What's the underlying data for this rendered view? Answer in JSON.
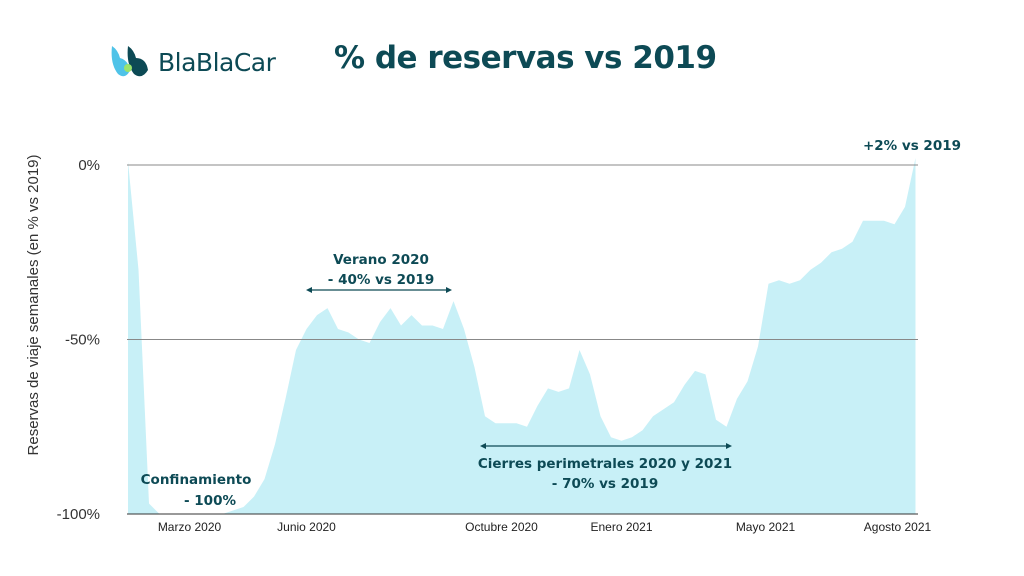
{
  "logo": {
    "text": "BlaBlaCar"
  },
  "chart_data": {
    "type": "area",
    "title": "% de reservas vs 2019",
    "ylabel": "Reservas de viaje semanales (en % vs 2019)",
    "xlabel": "",
    "ylim": [
      -100,
      0
    ],
    "yticks": [
      {
        "value": 0,
        "label": "0%"
      },
      {
        "value": -50,
        "label": "-50%"
      },
      {
        "value": -100,
        "label": "-100%"
      }
    ],
    "grid": "horizontal at 0% and -50%",
    "fill_color": "#c8f0f7",
    "text_color": "#0d4a55",
    "xticks": [
      {
        "date": "2020-04-12",
        "label": "Marzo 2020"
      },
      {
        "date": "2020-06-29",
        "label": "Junio 2020"
      },
      {
        "date": "2020-11-06",
        "label": "Octubre 2020"
      },
      {
        "date": "2021-01-25",
        "label": "Enero 2021"
      },
      {
        "date": "2021-05-01",
        "label": "Mayo 2021"
      },
      {
        "date": "2021-07-28",
        "label": "Agosto 2021"
      }
    ],
    "x": [
      "2020-03-02",
      "2020-03-09",
      "2020-03-16",
      "2020-03-23",
      "2020-03-30",
      "2020-04-06",
      "2020-04-13",
      "2020-04-20",
      "2020-04-27",
      "2020-05-04",
      "2020-05-11",
      "2020-05-18",
      "2020-05-25",
      "2020-06-01",
      "2020-06-08",
      "2020-06-15",
      "2020-06-22",
      "2020-06-29",
      "2020-07-06",
      "2020-07-13",
      "2020-07-20",
      "2020-07-27",
      "2020-08-03",
      "2020-08-10",
      "2020-08-17",
      "2020-08-24",
      "2020-08-31",
      "2020-09-07",
      "2020-09-14",
      "2020-09-21",
      "2020-09-28",
      "2020-10-05",
      "2020-10-12",
      "2020-10-19",
      "2020-10-26",
      "2020-11-02",
      "2020-11-09",
      "2020-11-16",
      "2020-11-23",
      "2020-11-30",
      "2020-12-07",
      "2020-12-14",
      "2020-12-21",
      "2020-12-28",
      "2021-01-04",
      "2021-01-11",
      "2021-01-18",
      "2021-01-25",
      "2021-02-01",
      "2021-02-08",
      "2021-02-15",
      "2021-02-22",
      "2021-03-01",
      "2021-03-08",
      "2021-03-15",
      "2021-03-22",
      "2021-03-29",
      "2021-04-05",
      "2021-04-12",
      "2021-04-19",
      "2021-04-26",
      "2021-05-03",
      "2021-05-10",
      "2021-05-17",
      "2021-05-24",
      "2021-05-31",
      "2021-06-07",
      "2021-06-14",
      "2021-06-21",
      "2021-06-28",
      "2021-07-05",
      "2021-07-12",
      "2021-07-19",
      "2021-07-26",
      "2021-08-02",
      "2021-08-09"
    ],
    "values": [
      1,
      -30,
      -97,
      -100,
      -100,
      -100,
      -100,
      -100,
      -100,
      -100,
      -99,
      -98,
      -95,
      -90,
      -80,
      -67,
      -53,
      -47,
      -43,
      -41,
      -47,
      -48,
      -50,
      -51,
      -45,
      -41,
      -46,
      -43,
      -46,
      -46,
      -47,
      -39,
      -47,
      -58,
      -72,
      -74,
      -74,
      -74,
      -75,
      -69,
      -64,
      -65,
      -64,
      -53,
      -60,
      -72,
      -78,
      -79,
      -78,
      -76,
      -72,
      -70,
      -68,
      -63,
      -59,
      -60,
      -73,
      -75,
      -67,
      -62,
      -52,
      -34,
      -33,
      -34,
      -33,
      -30,
      -28,
      -25,
      -24,
      -22,
      -16,
      -16,
      -16,
      -17,
      -12,
      2
    ],
    "annotations": {
      "lockdown": [
        "Confinamiento",
        "- 100%"
      ],
      "summer": [
        "Verano 2020",
        "- 40% vs 2019"
      ],
      "closures": [
        "Cierres perimetrales 2020 y 2021",
        "- 70% vs 2019"
      ],
      "latest": "+2% vs 2019"
    }
  }
}
